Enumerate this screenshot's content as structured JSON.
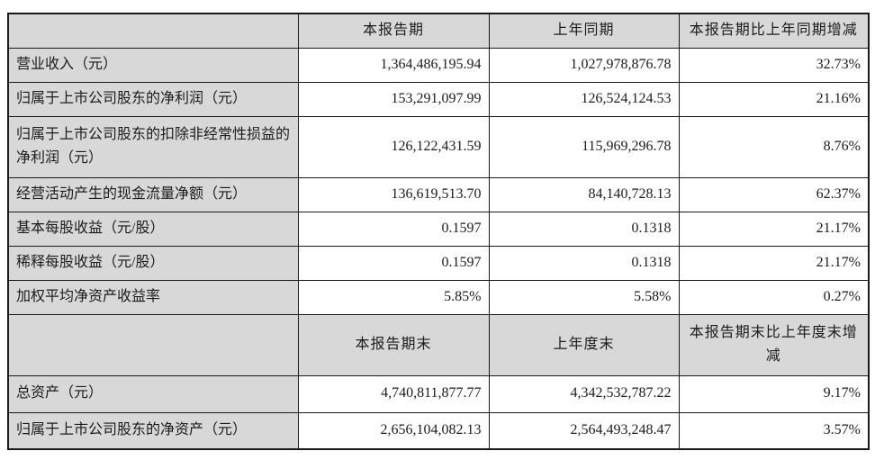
{
  "colors": {
    "header_bg": "#d8d8d8",
    "label_bg": "#d8d8d8",
    "border": "#1a1a1a",
    "cell_bg": "#ffffff",
    "text": "#1c1c1c"
  },
  "table": {
    "section1": {
      "header": {
        "label": "",
        "current": "本报告期",
        "prior": "上年同期",
        "change": "本报告期比上年同期增减"
      },
      "rows": [
        {
          "label": "营业收入（元）",
          "current": "1,364,486,195.94",
          "prior": "1,027,978,876.78",
          "change": "32.73%"
        },
        {
          "label": "归属于上市公司股东的净利润（元）",
          "current": "153,291,097.99",
          "prior": "126,524,124.53",
          "change": "21.16%"
        },
        {
          "label": "归属于上市公司股东的扣除非经常性损益的净利润（元）",
          "current": "126,122,431.59",
          "prior": "115,969,296.78",
          "change": "8.76%"
        },
        {
          "label": "经营活动产生的现金流量净额（元）",
          "current": "136,619,513.70",
          "prior": "84,140,728.13",
          "change": "62.37%"
        },
        {
          "label": "基本每股收益（元/股）",
          "current": "0.1597",
          "prior": "0.1318",
          "change": "21.17%"
        },
        {
          "label": "稀释每股收益（元/股）",
          "current": "0.1597",
          "prior": "0.1318",
          "change": "21.17%"
        },
        {
          "label": "加权平均净资产收益率",
          "current": "5.85%",
          "prior": "5.58%",
          "change": "0.27%"
        }
      ]
    },
    "section2": {
      "header": {
        "label": "",
        "current": "本报告期末",
        "prior": "上年度末",
        "change": "本报告期末比上年度末增减"
      },
      "rows": [
        {
          "label": "总资产（元）",
          "current": "4,740,811,877.77",
          "prior": "4,342,532,787.22",
          "change": "9.17%"
        },
        {
          "label": "归属于上市公司股东的净资产（元）",
          "current": "2,656,104,082.13",
          "prior": "2,564,493,248.47",
          "change": "3.57%"
        }
      ]
    }
  }
}
